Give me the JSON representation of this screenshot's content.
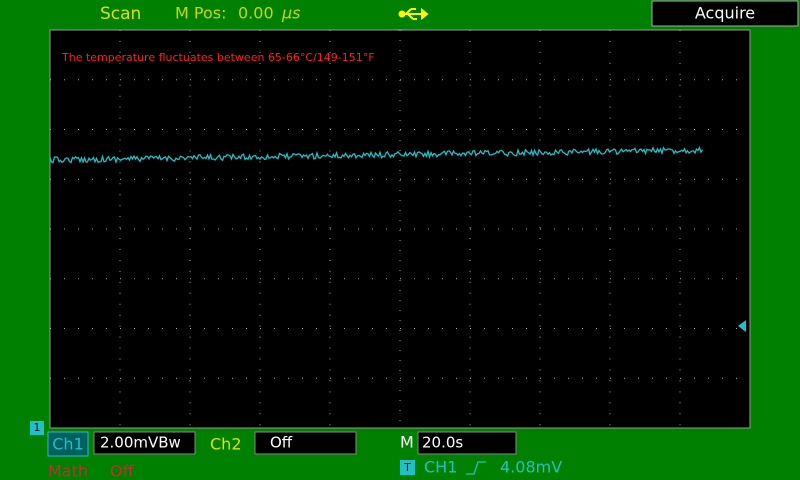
{
  "top_bar": {
    "mode": "Scan",
    "mpos_label": "M Pos:",
    "mpos_value": "0.00",
    "mpos_unit": "µs",
    "menu_title": "Acquire"
  },
  "screen": {
    "annotation": "The temperature fluctuates between 65-66°C/149-151°F"
  },
  "bottom_bar": {
    "ch1_marker": "1",
    "ch1_label": "Ch1",
    "ch1_scale": "2.00mVBw",
    "ch2_label": "Ch2",
    "ch2_state": "Off",
    "timebase_label": "M",
    "timebase_value": "20.0s",
    "trigger_marker": "T",
    "trigger_source": "CH1",
    "trigger_level": "4.08mV",
    "math_label": "Math",
    "math_state": "Off"
  }
}
